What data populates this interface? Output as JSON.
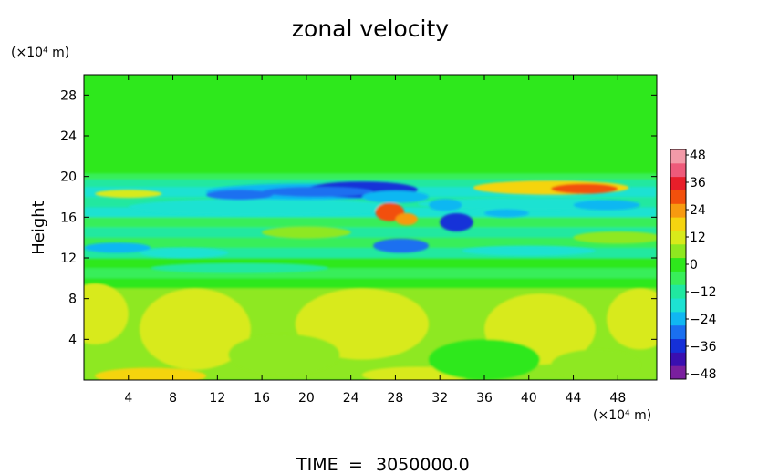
{
  "chart_data": {
    "type": "heatmap",
    "title": "zonal velocity",
    "xlabel": "",
    "ylabel": "Height",
    "x_unit": "(×10⁴ m)",
    "y_unit": "(×10⁴ m)",
    "xlim": [
      0,
      51.5
    ],
    "ylim": [
      0,
      30
    ],
    "x_ticks": [
      4,
      8,
      12,
      16,
      20,
      24,
      28,
      32,
      36,
      40,
      44,
      48
    ],
    "y_ticks": [
      4,
      8,
      12,
      16,
      20,
      24,
      28
    ],
    "colorbar": {
      "labels": [
        "48",
        "36",
        "24",
        "12",
        "0",
        "−12",
        "−24",
        "−36",
        "−48"
      ],
      "min": -54,
      "max": 54,
      "colors": [
        "#7a1f9e",
        "#3a0fb0",
        "#1530d8",
        "#1a6ff0",
        "#10b7f2",
        "#1de2d2",
        "#20e8a0",
        "#38ee5a",
        "#2ee81c",
        "#8ee820",
        "#d8ea1a",
        "#f5d410",
        "#f79a10",
        "#f2500c",
        "#e81e2a",
        "#ee5a7a",
        "#f39aa8"
      ]
    },
    "field_description": {
      "background_value": 1,
      "upper_layer": {
        "y_range": [
          20,
          30
        ],
        "value": 1
      },
      "jet_layer": {
        "y_range": [
          9,
          20
        ],
        "min_value": -40,
        "max_value": 38
      },
      "lower_layer": {
        "y_range": [
          0,
          9
        ],
        "min_value": 2,
        "max_value": 14
      }
    }
  },
  "footer": {
    "time_label": "TIME",
    "time_sep": "=",
    "time_value": "3050000.0"
  }
}
